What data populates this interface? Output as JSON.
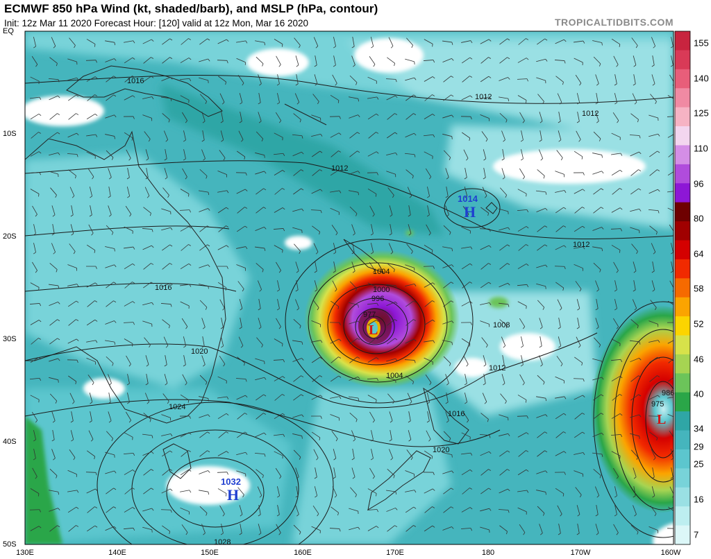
{
  "header": {
    "title": "ECMWF 850 hPa Wind (kt, shaded/barb), and MSLP (hPa, contour)",
    "subtitle": "Init: 12z Mar 11 2020   Forecast Hour: [120]   valid at 12z Mon, Mar 16 2020",
    "brand": "TROPICALTIDBITS.COM"
  },
  "axes": {
    "lat_labels": [
      "EQ",
      "10S",
      "20S",
      "30S",
      "40S",
      "50S"
    ],
    "lon_labels": [
      "130E",
      "140E",
      "150E",
      "160E",
      "170E",
      "180",
      "170W",
      "160W"
    ]
  },
  "colorbar": {
    "labels": [
      "155",
      "140",
      "125",
      "110",
      "96",
      "80",
      "64",
      "58",
      "52",
      "46",
      "40",
      "34",
      "29",
      "25",
      "16",
      "7"
    ],
    "colors": [
      "#c8243f",
      "#d93a57",
      "#e85e7a",
      "#f08aa3",
      "#f6b3c4",
      "#f3d6ef",
      "#d48ee6",
      "#b04cdc",
      "#8d17d6",
      "#6e0000",
      "#a00000",
      "#d40000",
      "#f12a00",
      "#f66a00",
      "#fba400",
      "#fcd400",
      "#d7e24a",
      "#a6d452",
      "#6cc45a",
      "#2aa648",
      "#2fa6a6",
      "#45b5bd",
      "#5cc6ce",
      "#78d3d9",
      "#9ae0e4",
      "#bdeef0",
      "#dcf7f8"
    ]
  },
  "pressure_labels": [
    "1016",
    "1012",
    "1012",
    "1012",
    "1014",
    "1012",
    "1016",
    "1020",
    "1024",
    "1004",
    "1000",
    "996",
    "977",
    "1004",
    "1008",
    "1012",
    "1016",
    "1020",
    "1032",
    "1028",
    "986",
    "975"
  ],
  "centers": [
    {
      "letter": "H",
      "value": "1014",
      "color": "#1f3fd0"
    },
    {
      "letter": "H",
      "value": "1032",
      "color": "#1f3fd0"
    },
    {
      "letter": "L",
      "color": "#d01818"
    },
    {
      "letter": "L",
      "color": "#d01818"
    }
  ]
}
